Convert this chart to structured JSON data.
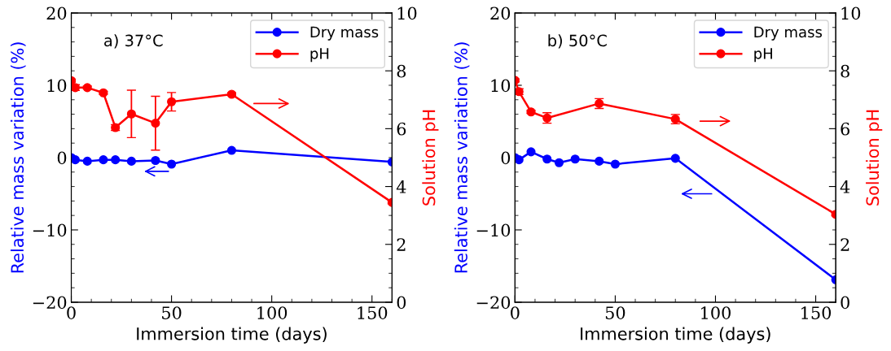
{
  "chart_data": [
    {
      "type": "line",
      "xlabel": "Immersion time (days)",
      "ylabel": "Relative mass variation (%)",
      "y2label": "Solution pH",
      "annotations": [
        "a) 37°C"
      ],
      "xlim": [
        0,
        160
      ],
      "xticks": [
        0,
        50,
        100,
        150
      ],
      "ylim": [
        -20,
        20
      ],
      "yticks": [
        -20,
        -10,
        0,
        10,
        20
      ],
      "y2lim": [
        0,
        10
      ],
      "y2ticks": [
        0,
        2,
        4,
        6,
        8,
        10
      ],
      "grid": false,
      "legend": "top right",
      "marker": "circle",
      "line_style": "solid",
      "series": [
        {
          "name": "Dry mass",
          "color": "#0000ff",
          "x": [
            0,
            2,
            8,
            16,
            22,
            30,
            42,
            50,
            80,
            160
          ],
          "values": [
            0,
            -0.3,
            -0.5,
            -0.3,
            -0.3,
            -0.5,
            -0.4,
            -0.9,
            1.0,
            -0.6
          ]
        },
        {
          "name": "pH",
          "color": "#ff0000",
          "axis": "y2",
          "x": [
            0,
            2,
            8,
            16,
            22,
            30,
            42,
            50,
            80,
            160
          ],
          "values": [
            7.66,
            7.42,
            7.42,
            7.24,
            6.04,
            6.51,
            6.19,
            6.93,
            7.19,
            3.45
          ],
          "errors": [
            0.05,
            0.1,
            0.05,
            0.05,
            0.1,
            0.82,
            0.93,
            0.32,
            0.05,
            0.05
          ]
        }
      ]
    },
    {
      "type": "line",
      "xlabel": "Immersion time (days)",
      "ylabel": "Relative mass variation (%)",
      "y2label": "Solution pH",
      "annotations": [
        "b) 50°C"
      ],
      "xlim": [
        0,
        160
      ],
      "xticks": [
        0,
        50,
        100,
        150
      ],
      "ylim": [
        -20,
        20
      ],
      "yticks": [
        -20,
        -10,
        0,
        10,
        20
      ],
      "y2lim": [
        0,
        10
      ],
      "y2ticks": [
        0,
        2,
        4,
        6,
        8,
        10
      ],
      "grid": false,
      "legend": "top right",
      "marker": "circle",
      "line_style": "solid",
      "series": [
        {
          "name": "Dry mass",
          "color": "#0000ff",
          "x": [
            0,
            2,
            8,
            16,
            22,
            30,
            42,
            50,
            80,
            160
          ],
          "values": [
            0,
            -0.3,
            0.8,
            -0.2,
            -0.7,
            -0.2,
            -0.5,
            -0.9,
            -0.1,
            -16.9
          ]
        },
        {
          "name": "pH",
          "color": "#ff0000",
          "axis": "y2",
          "x": [
            0,
            2,
            8,
            16,
            42,
            80,
            160
          ],
          "values": [
            7.67,
            7.28,
            6.58,
            6.37,
            6.87,
            6.33,
            3.04
          ],
          "errors": [
            0.05,
            0.1,
            0.05,
            0.18,
            0.17,
            0.16,
            0.05
          ]
        }
      ]
    }
  ]
}
